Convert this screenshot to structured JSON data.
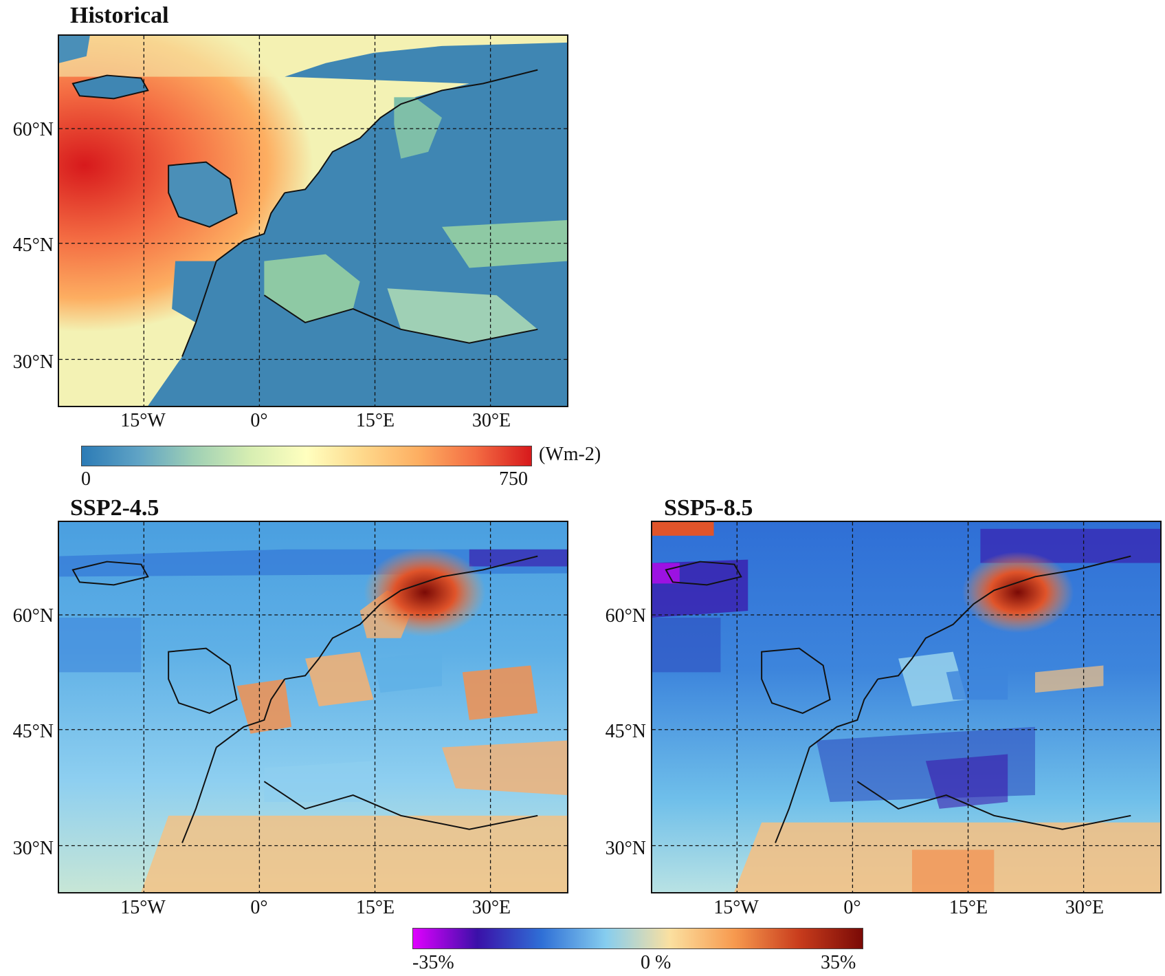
{
  "panels": [
    {
      "title": "Historical"
    },
    {
      "title": "SSP2-4.5"
    },
    {
      "title": "SSP5-8.5"
    }
  ],
  "axes": {
    "lat_labels": [
      "60°N",
      "45°N",
      "30°N"
    ],
    "lon_labels": [
      "15°W",
      "0°",
      "15°E",
      "30°E"
    ]
  },
  "colorbar_historical": {
    "min_label": "0",
    "max_label": "750",
    "unit": "(Wm-2)",
    "colors": [
      "#2c7bb6",
      "#5fa3c5",
      "#9fd0b5",
      "#d7eeb2",
      "#ffffbf",
      "#fed88b",
      "#fdae61",
      "#f46d43",
      "#d7191c"
    ]
  },
  "colorbar_change": {
    "min_label": "-35%",
    "mid_label": "0 %",
    "max_label": "35%",
    "colors": [
      "#e000ff",
      "#3a10a8",
      "#2f6fd6",
      "#86cdef",
      "#fbe0a0",
      "#f79a4f",
      "#c93d1d",
      "#7a0a06"
    ]
  }
}
